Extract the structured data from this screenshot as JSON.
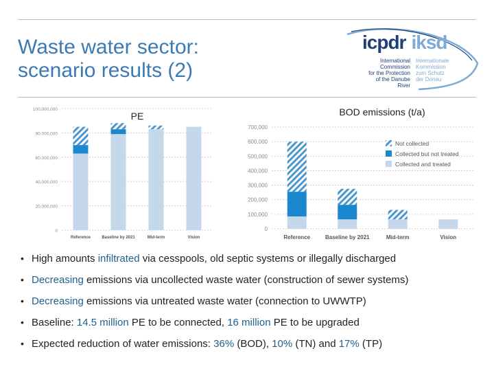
{
  "slide": {
    "title_line1": "Waste water sector:",
    "title_line2": "scenario results (2)"
  },
  "logo": {
    "abbr_en": "icpdr",
    "abbr_de": "iksd",
    "name_en": [
      "International",
      "Commission",
      "for the Protection",
      "of the Danube River"
    ],
    "name_de": [
      "Internationale",
      "Kommission",
      "zum Schutz",
      "der Donau"
    ],
    "colors": {
      "dark": "#1e3f7a",
      "light": "#7eaad6"
    }
  },
  "chart_data": [
    {
      "type": "bar",
      "stacked": true,
      "title": "PE",
      "categories": [
        "Reference",
        "Baseline by 2021",
        "Mid-term",
        "Vision"
      ],
      "ylim": [
        0,
        100000000
      ],
      "yticks": [
        0,
        20000000,
        40000000,
        60000000,
        80000000,
        100000000
      ],
      "ytick_labels": [
        "0",
        "20,000,000",
        "40,000,000",
        "60,000,000",
        "80,000,000",
        "100,000,000"
      ],
      "grid": true,
      "series": [
        {
          "name": "Collected and treated",
          "values": [
            63000000,
            79000000,
            83000000,
            85000000
          ],
          "color": "#c5d7ea"
        },
        {
          "name": "Collected but not treated",
          "values": [
            7000000,
            4000000,
            0,
            0
          ],
          "color": "#1a87cf"
        },
        {
          "name": "Not collected",
          "values": [
            15000000,
            5000000,
            3000000,
            0
          ],
          "color": "#4a96cf",
          "hatched": true
        }
      ]
    },
    {
      "type": "bar",
      "stacked": true,
      "title": "BOD emissions (t/a)",
      "categories": [
        "Reference",
        "Baseline by 2021",
        "Mid-term",
        "Vision"
      ],
      "ylim": [
        0,
        700000
      ],
      "yticks": [
        0,
        100000,
        200000,
        300000,
        400000,
        500000,
        600000,
        700000
      ],
      "ytick_labels": [
        "0",
        "100,000",
        "200,000",
        "300,000",
        "400,000",
        "500,000",
        "600,000",
        "700,000"
      ],
      "grid": true,
      "legend_position": "top-right",
      "series": [
        {
          "name": "Collected and treated",
          "values": [
            85000,
            65000,
            65000,
            65000
          ],
          "color": "#c5d7ea"
        },
        {
          "name": "Collected but not treated",
          "values": [
            170000,
            100000,
            0,
            0
          ],
          "color": "#1a87cf"
        },
        {
          "name": "Not collected",
          "values": [
            345000,
            110000,
            65000,
            0
          ],
          "color": "#4a96cf",
          "hatched": true
        }
      ],
      "legend": [
        "Not collected",
        "Collected but not treated",
        "Collected and treated"
      ]
    }
  ],
  "bullets": [
    {
      "before": "High amounts ",
      "hl": "infiltrated",
      "after": " via cesspools, old septic systems or illegally discharged"
    },
    {
      "before": "",
      "hl": "Decreasing",
      "after": " emissions via uncollected waste water (construction of sewer systems)"
    },
    {
      "before": "",
      "hl": "Decreasing",
      "after": " emissions via untreated  waste water (connection to UWWTP)"
    },
    {
      "before": "Baseline: ",
      "hl": "14.5 million",
      "mid": " PE to be connected, ",
      "hl2": "16 million",
      "after": " PE to be upgraded"
    },
    {
      "before": "Expected reduction of water emissions: ",
      "hl": "36%",
      "mid": " (BOD), ",
      "hl2": "10%",
      "mid2": " (TN) and ",
      "hl3": "17%",
      "after": " (TP)"
    }
  ]
}
